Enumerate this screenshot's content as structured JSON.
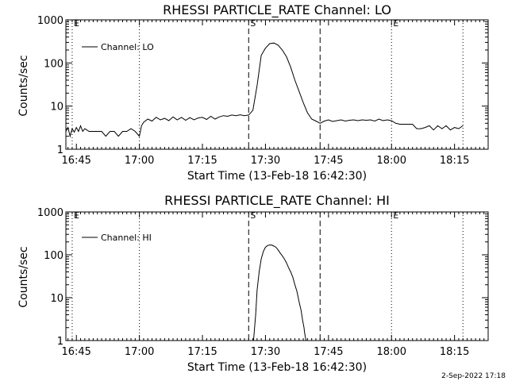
{
  "footer": {
    "date_stamp": "2-Sep-2022 17:18"
  },
  "chart_data": [
    {
      "type": "line",
      "title": "RHESSI PARTICLE_RATE Channel: LO",
      "xlabel": "Start Time (13-Feb-18 16:42:30)",
      "ylabel": "Counts/sec",
      "y_scale": "log",
      "ylim": [
        1,
        1000
      ],
      "xlim": [
        "16:42:30",
        "18:23"
      ],
      "x_ticks": [
        "16:45",
        "17:00",
        "17:15",
        "17:30",
        "17:45",
        "18:00",
        "18:15"
      ],
      "y_ticks": [
        "1",
        "10",
        "100",
        "1000"
      ],
      "legend": {
        "placement": "top-left",
        "entries": [
          "Channel: LO"
        ]
      },
      "markers": [
        {
          "time": "16:44",
          "label": "E",
          "style": "dotted"
        },
        {
          "time": "17:00",
          "label": "",
          "style": "dotted"
        },
        {
          "time": "17:26",
          "label": "S",
          "style": "dashed"
        },
        {
          "time": "17:43",
          "label": "",
          "style": "dashed"
        },
        {
          "time": "18:00",
          "label": "E",
          "style": "dotted"
        },
        {
          "time": "18:17",
          "label": "",
          "style": "dotted"
        }
      ],
      "series": [
        {
          "name": "Channel: LO",
          "x": [
            "16:42:30",
            "16:43",
            "16:43:30",
            "16:44",
            "16:44:30",
            "16:45",
            "16:45:30",
            "16:46",
            "16:46:30",
            "16:47",
            "16:48",
            "16:49",
            "16:50",
            "16:51",
            "16:52",
            "16:53",
            "16:54",
            "16:55",
            "16:56",
            "16:57",
            "16:58",
            "16:59",
            "17:00",
            "17:00:30",
            "17:01",
            "17:02",
            "17:03",
            "17:04",
            "17:05",
            "17:06",
            "17:07",
            "17:08",
            "17:09",
            "17:10",
            "17:11",
            "17:12",
            "17:13",
            "17:14",
            "17:15",
            "17:16",
            "17:17",
            "17:18",
            "17:19",
            "17:20",
            "17:21",
            "17:22",
            "17:23",
            "17:24",
            "17:25",
            "17:26",
            "17:27",
            "17:28",
            "17:29",
            "17:30",
            "17:31",
            "17:32",
            "17:33",
            "17:34",
            "17:35",
            "17:36",
            "17:37",
            "17:38",
            "17:39",
            "17:40",
            "17:41",
            "17:42",
            "17:43",
            "17:44",
            "17:45",
            "17:46",
            "17:47",
            "17:48",
            "17:49",
            "17:50",
            "17:51",
            "17:52",
            "17:53",
            "17:54",
            "17:55",
            "17:56",
            "17:57",
            "17:58",
            "17:59",
            "18:00",
            "18:01",
            "18:02",
            "18:03",
            "18:04",
            "18:05",
            "18:06",
            "18:07",
            "18:08",
            "18:09",
            "18:10",
            "18:11",
            "18:12",
            "18:13",
            "18:14",
            "18:15",
            "18:16",
            "18:17"
          ],
          "values": [
            2.6,
            3.2,
            2.0,
            3.0,
            2.5,
            3.2,
            2.6,
            3.5,
            2.6,
            3.0,
            2.6,
            2.6,
            2.6,
            2.6,
            2.0,
            2.6,
            2.6,
            2.0,
            2.6,
            2.6,
            3.0,
            2.6,
            2.0,
            3.5,
            4.2,
            5.0,
            4.5,
            5.5,
            4.8,
            5.2,
            4.6,
            5.6,
            4.8,
            5.5,
            4.7,
            5.4,
            4.8,
            5.3,
            5.5,
            4.9,
            5.8,
            5.0,
            5.6,
            6.0,
            5.8,
            6.2,
            6.0,
            6.3,
            6.0,
            6.2,
            8.0,
            30,
            150,
            220,
            280,
            290,
            260,
            200,
            140,
            80,
            40,
            22,
            12,
            7,
            5,
            4.5,
            4.0,
            4.5,
            4.8,
            4.4,
            4.6,
            4.8,
            4.5,
            4.7,
            4.8,
            4.6,
            4.8,
            4.7,
            4.8,
            4.5,
            5.0,
            4.6,
            4.8,
            4.6,
            4.0,
            3.8,
            3.8,
            3.8,
            3.8,
            3.0,
            3.0,
            3.2,
            3.5,
            2.8,
            3.5,
            3.0,
            3.5,
            2.8,
            3.2,
            3.0,
            3.5
          ]
        }
      ]
    },
    {
      "type": "line",
      "title": "RHESSI PARTICLE_RATE Channel: HI",
      "xlabel": "Start Time (13-Feb-18 16:42:30)",
      "ylabel": "Counts/sec",
      "y_scale": "log",
      "ylim": [
        1,
        1000
      ],
      "xlim": [
        "16:42:30",
        "18:23"
      ],
      "x_ticks": [
        "16:45",
        "17:00",
        "17:15",
        "17:30",
        "17:45",
        "18:00",
        "18:15"
      ],
      "y_ticks": [
        "1",
        "10",
        "100",
        "1000"
      ],
      "legend": {
        "placement": "top-left",
        "entries": [
          "Channel: HI"
        ]
      },
      "markers": [
        {
          "time": "16:44",
          "label": "E",
          "style": "dotted"
        },
        {
          "time": "17:00",
          "label": "",
          "style": "dotted"
        },
        {
          "time": "17:26",
          "label": "S",
          "style": "dashed"
        },
        {
          "time": "17:43",
          "label": "",
          "style": "dashed"
        },
        {
          "time": "18:00",
          "label": "E",
          "style": "dotted"
        },
        {
          "time": "18:17",
          "label": "",
          "style": "dotted"
        }
      ],
      "series": [
        {
          "name": "Channel: HI",
          "x": [
            "17:27:10",
            "17:27:40",
            "17:28",
            "17:28:30",
            "17:29",
            "17:29:30",
            "17:30",
            "17:30:30",
            "17:31",
            "17:31:30",
            "17:32",
            "17:32:30",
            "17:33",
            "17:33:30",
            "17:34",
            "17:34:30",
            "17:35",
            "17:35:30",
            "17:36",
            "17:36:30",
            "17:37",
            "17:37:30",
            "17:38",
            "17:38:30",
            "17:38:50",
            "17:39:10",
            "17:39:20",
            "17:39:30",
            "17:39:40"
          ],
          "values": [
            1.0,
            4,
            15,
            40,
            80,
            120,
            150,
            165,
            170,
            168,
            160,
            150,
            130,
            110,
            95,
            80,
            65,
            50,
            40,
            30,
            20,
            14,
            8,
            5,
            3,
            2,
            1.5,
            1.2,
            1.0
          ]
        }
      ]
    }
  ]
}
